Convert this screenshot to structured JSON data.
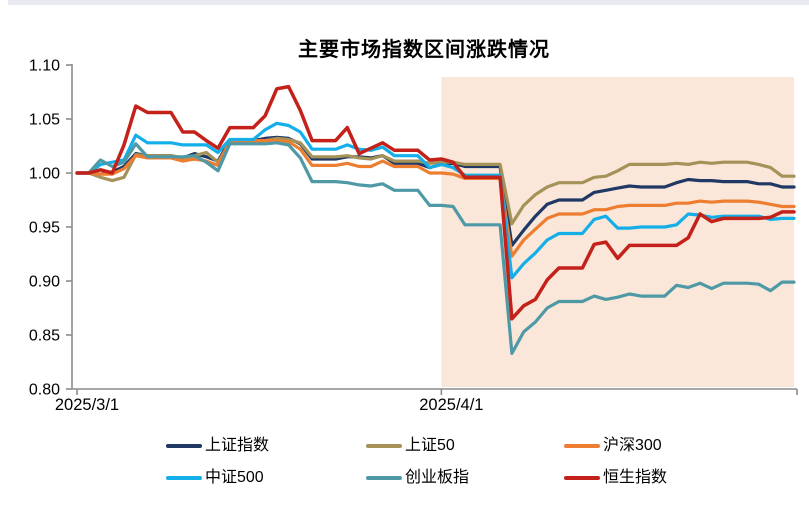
{
  "chart_data": {
    "type": "line",
    "title": "主要市场指数区间涨跌情况",
    "xlabel": "",
    "ylabel": "",
    "ylim": [
      0.8,
      1.1
    ],
    "y_ticks": [
      "1.10",
      "1.05",
      "1.00",
      "0.95",
      "0.90",
      "0.85",
      "0.80"
    ],
    "x_ticks": [
      {
        "label": "2025/3/1",
        "index": 0
      },
      {
        "label": "2025/4/1",
        "index": 31
      }
    ],
    "grid": "off",
    "legend_position": "bottom",
    "highlight_region": {
      "start_date": "2025/4/1",
      "start_index": 31,
      "color": "#FAE7D9"
    },
    "dates": [
      "2025/3/1",
      "2025/3/2",
      "2025/3/3",
      "2025/3/4",
      "2025/3/5",
      "2025/3/6",
      "2025/3/7",
      "2025/3/8",
      "2025/3/9",
      "2025/3/10",
      "2025/3/11",
      "2025/3/12",
      "2025/3/13",
      "2025/3/14",
      "2025/3/15",
      "2025/3/16",
      "2025/3/17",
      "2025/3/18",
      "2025/3/19",
      "2025/3/20",
      "2025/3/21",
      "2025/3/22",
      "2025/3/23",
      "2025/3/24",
      "2025/3/25",
      "2025/3/26",
      "2025/3/27",
      "2025/3/28",
      "2025/3/29",
      "2025/3/30",
      "2025/3/31",
      "2025/4/1",
      "2025/4/2",
      "2025/4/3",
      "2025/4/4",
      "2025/4/5",
      "2025/4/6",
      "2025/4/7",
      "2025/4/8",
      "2025/4/9",
      "2025/4/10",
      "2025/4/11",
      "2025/4/12",
      "2025/4/13",
      "2025/4/14",
      "2025/4/15",
      "2025/4/16",
      "2025/4/17",
      "2025/4/18",
      "2025/4/19",
      "2025/4/20",
      "2025/4/21",
      "2025/4/22",
      "2025/4/23",
      "2025/4/24",
      "2025/4/25",
      "2025/4/26",
      "2025/4/27",
      "2025/4/28",
      "2025/4/29",
      "2025/4/30",
      "2025/5/1"
    ],
    "series": [
      {
        "name": "上证指数",
        "color": "#1F3864",
        "values": [
          1.0,
          1.0,
          0.999,
          1.001,
          1.006,
          1.018,
          1.016,
          1.016,
          1.016,
          1.014,
          1.018,
          1.015,
          1.011,
          1.03,
          1.03,
          1.03,
          1.032,
          1.033,
          1.032,
          1.027,
          1.013,
          1.013,
          1.013,
          1.015,
          1.015,
          1.014,
          1.016,
          1.009,
          1.009,
          1.009,
          1.005,
          1.008,
          1.009,
          1.006,
          1.006,
          1.006,
          1.006,
          0.933,
          0.947,
          0.96,
          0.971,
          0.975,
          0.975,
          0.975,
          0.982,
          0.984,
          0.986,
          0.988,
          0.987,
          0.987,
          0.987,
          0.991,
          0.994,
          0.993,
          0.993,
          0.992,
          0.992,
          0.992,
          0.99,
          0.99,
          0.987,
          0.987
        ]
      },
      {
        "name": "上证50",
        "color": "#A49258",
        "values": [
          1.0,
          1.0,
          0.996,
          0.993,
          0.996,
          1.017,
          1.016,
          1.016,
          1.016,
          1.014,
          1.016,
          1.019,
          1.01,
          1.028,
          1.028,
          1.028,
          1.03,
          1.032,
          1.031,
          1.028,
          1.015,
          1.015,
          1.015,
          1.016,
          1.014,
          1.013,
          1.016,
          1.011,
          1.011,
          1.011,
          1.009,
          1.01,
          1.01,
          1.008,
          1.008,
          1.008,
          1.008,
          0.953,
          0.97,
          0.98,
          0.987,
          0.991,
          0.991,
          0.991,
          0.996,
          0.997,
          1.002,
          1.008,
          1.008,
          1.008,
          1.008,
          1.009,
          1.008,
          1.01,
          1.009,
          1.01,
          1.01,
          1.01,
          1.008,
          1.005,
          0.997,
          0.997
        ]
      },
      {
        "name": "沪深300",
        "color": "#ED7D31",
        "values": [
          1.0,
          1.0,
          0.999,
          0.999,
          1.004,
          1.016,
          1.014,
          1.014,
          1.014,
          1.011,
          1.013,
          1.011,
          1.007,
          1.03,
          1.03,
          1.03,
          1.03,
          1.03,
          1.029,
          1.022,
          1.007,
          1.007,
          1.007,
          1.009,
          1.006,
          1.006,
          1.011,
          1.006,
          1.006,
          1.006,
          1.0,
          1.0,
          0.999,
          0.995,
          0.995,
          0.995,
          0.995,
          0.923,
          0.938,
          0.948,
          0.958,
          0.962,
          0.962,
          0.962,
          0.966,
          0.966,
          0.969,
          0.97,
          0.97,
          0.97,
          0.97,
          0.972,
          0.972,
          0.974,
          0.973,
          0.974,
          0.974,
          0.974,
          0.973,
          0.971,
          0.969,
          0.969
        ]
      },
      {
        "name": "中证500",
        "color": "#14AEE9",
        "values": [
          1.0,
          1.0,
          1.008,
          1.01,
          1.012,
          1.035,
          1.028,
          1.028,
          1.028,
          1.026,
          1.026,
          1.026,
          1.019,
          1.031,
          1.031,
          1.031,
          1.04,
          1.046,
          1.044,
          1.038,
          1.022,
          1.022,
          1.022,
          1.026,
          1.022,
          1.021,
          1.024,
          1.016,
          1.016,
          1.016,
          1.005,
          1.008,
          1.005,
          0.998,
          0.998,
          0.998,
          0.998,
          0.903,
          0.916,
          0.926,
          0.938,
          0.944,
          0.944,
          0.944,
          0.957,
          0.96,
          0.949,
          0.949,
          0.95,
          0.95,
          0.95,
          0.952,
          0.962,
          0.961,
          0.959,
          0.96,
          0.96,
          0.96,
          0.96,
          0.957,
          0.958,
          0.958
        ]
      },
      {
        "name": "创业板指",
        "color": "#4F99A6",
        "values": [
          1.0,
          1.0,
          1.012,
          1.006,
          1.01,
          1.027,
          1.015,
          1.015,
          1.015,
          1.015,
          1.016,
          1.01,
          1.002,
          1.027,
          1.027,
          1.027,
          1.027,
          1.028,
          1.026,
          1.014,
          0.992,
          0.992,
          0.992,
          0.991,
          0.989,
          0.988,
          0.99,
          0.984,
          0.984,
          0.984,
          0.97,
          0.97,
          0.969,
          0.952,
          0.952,
          0.952,
          0.952,
          0.833,
          0.853,
          0.862,
          0.875,
          0.881,
          0.881,
          0.881,
          0.886,
          0.883,
          0.885,
          0.888,
          0.886,
          0.886,
          0.886,
          0.896,
          0.894,
          0.898,
          0.893,
          0.898,
          0.898,
          0.898,
          0.897,
          0.891,
          0.899,
          0.899
        ]
      },
      {
        "name": "恒生指数",
        "color": "#C4211A",
        "values": [
          1.0,
          1.0,
          1.003,
          1.0,
          1.026,
          1.062,
          1.056,
          1.056,
          1.056,
          1.038,
          1.038,
          1.03,
          1.023,
          1.042,
          1.042,
          1.042,
          1.053,
          1.078,
          1.08,
          1.058,
          1.03,
          1.03,
          1.03,
          1.042,
          1.018,
          1.023,
          1.028,
          1.021,
          1.021,
          1.021,
          1.012,
          1.013,
          1.01,
          0.996,
          0.996,
          0.996,
          0.996,
          0.865,
          0.877,
          0.883,
          0.901,
          0.912,
          0.912,
          0.912,
          0.934,
          0.936,
          0.921,
          0.933,
          0.933,
          0.933,
          0.933,
          0.933,
          0.94,
          0.962,
          0.955,
          0.958,
          0.958,
          0.958,
          0.958,
          0.959,
          0.964,
          0.964
        ]
      }
    ]
  }
}
